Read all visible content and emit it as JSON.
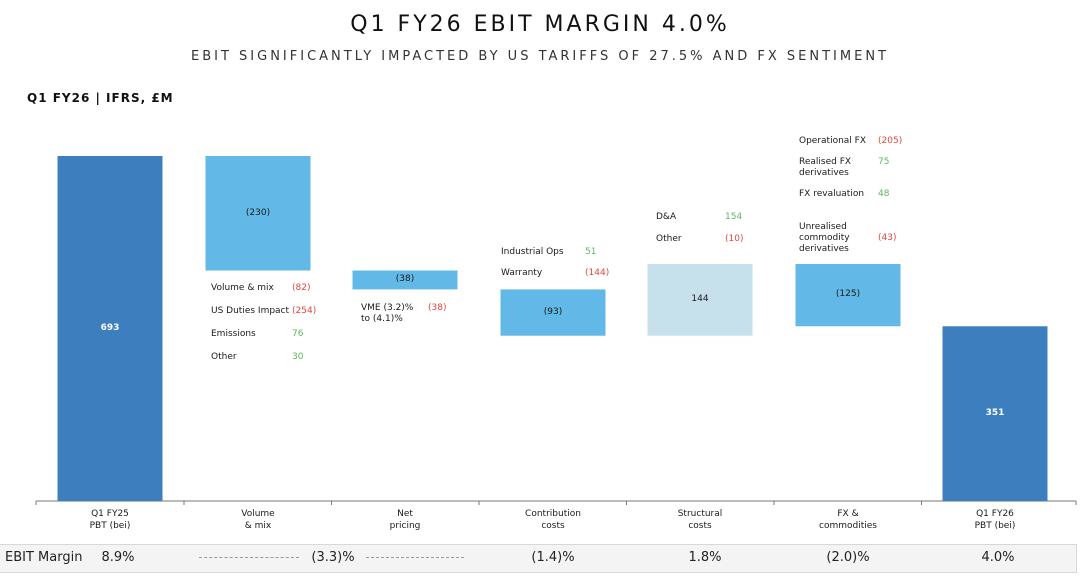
{
  "header": {
    "title": "Q1 FY26 EBIT MARGIN 4.0%",
    "subtitle": "EBIT SIGNIFICANTLY IMPACTED BY US TARIFFS OF 27.5% AND FX SENTIMENT",
    "section_label": "Q1 FY26 | IFRS, £M"
  },
  "chart_data": {
    "type": "bar",
    "subtype": "waterfall",
    "title": "Q1 FY26 EBIT MARGIN 4.0%",
    "categories": [
      "Q1 FY25\nPBT (bei)",
      "Volume\n& mix",
      "Net\npricing",
      "Contribution\ncosts",
      "Structural\ncosts",
      "FX &\ncommodities",
      "Q1 FY26\nPBT (bei)"
    ],
    "category_lines": [
      [
        "Q1 FY25",
        "PBT (bei)"
      ],
      [
        "Volume",
        "& mix"
      ],
      [
        "Net",
        "pricing"
      ],
      [
        "Contribution",
        "costs"
      ],
      [
        "Structural",
        "costs"
      ],
      [
        "FX &",
        "commodities"
      ],
      [
        "Q1 FY26",
        "PBT (bei)"
      ]
    ],
    "values": [
      693,
      -230,
      -38,
      -93,
      144,
      -125,
      351
    ],
    "value_labels": [
      "693",
      "(230)",
      "(38)",
      "(93)",
      "144",
      "(125)",
      "351"
    ],
    "bar_kinds": [
      "total",
      "decrease",
      "decrease",
      "decrease",
      "increase",
      "decrease",
      "total"
    ],
    "ylim": [
      0,
      693
    ],
    "colors": {
      "total": "#3d7fbe",
      "decrease": "#62b8e6",
      "increase": "#c7e1ec",
      "negative_text": "#e0473f",
      "positive_text": "#5cb85c"
    },
    "breakdowns": [
      {
        "bar": "Volume & mix",
        "items": [
          {
            "label": "Volume & mix",
            "value": "(82)",
            "sign": "neg"
          },
          {
            "label": "US Duties Impact",
            "value": "(254)",
            "sign": "neg"
          },
          {
            "label": "Emissions",
            "value": "76",
            "sign": "pos"
          },
          {
            "label": "Other",
            "value": "30",
            "sign": "pos"
          }
        ]
      },
      {
        "bar": "Net pricing",
        "items": [
          {
            "label": "VME (3.2)%\nto (4.1)%",
            "value": "(38)",
            "sign": "neg"
          }
        ]
      },
      {
        "bar": "Contribution costs",
        "items": [
          {
            "label": "Industrial Ops",
            "value": "51",
            "sign": "pos"
          },
          {
            "label": "Warranty",
            "value": "(144)",
            "sign": "neg"
          }
        ]
      },
      {
        "bar": "Structural costs",
        "items": [
          {
            "label": "D&A",
            "value": "154",
            "sign": "pos"
          },
          {
            "label": "Other",
            "value": "(10)",
            "sign": "neg"
          }
        ]
      },
      {
        "bar": "FX & commodities",
        "items": [
          {
            "label": "Operational FX",
            "value": "(205)",
            "sign": "neg"
          },
          {
            "label": "Realised FX\nderivatives",
            "value": "75",
            "sign": "pos"
          },
          {
            "label": "FX revaluation",
            "value": "48",
            "sign": "pos"
          },
          {
            "label": "Unrealised\ncommodity\nderivatives",
            "value": "(43)",
            "sign": "neg"
          }
        ]
      }
    ]
  },
  "ebit_margin_row": {
    "label": "EBIT Margin",
    "values": [
      "8.9%",
      "(3.3)%",
      "",
      "(1.4)%",
      "1.8%",
      "(2.0)%",
      "4.0%"
    ]
  }
}
